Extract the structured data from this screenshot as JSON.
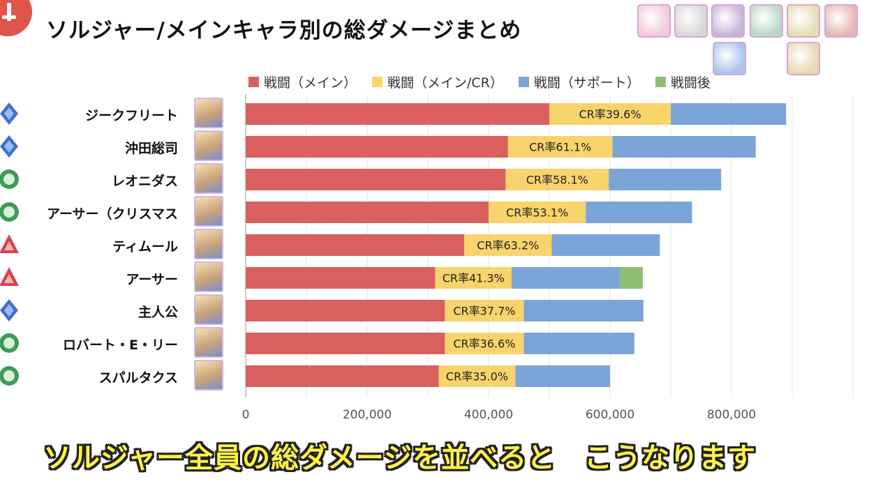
{
  "page": {
    "title": "ソルジャー/メインキャラ別の総ダメージまとめ",
    "caption": "ソルジャー全員の総ダメージを並べると　こうなります"
  },
  "colors": {
    "main": "#d9605e",
    "main_cr": "#f9d36b",
    "support": "#7ba5d9",
    "after": "#8fbf76",
    "grid": "#e6e6e6",
    "axis": "#555555"
  },
  "item_icons": [
    "character-portrait-icon",
    "sword-icon",
    "claw-icon",
    "armor-icon",
    "rope-icon",
    "scroll-icon",
    "orb-icon",
    "wings-icon",
    "spellbook-icon"
  ],
  "chart_data": {
    "type": "bar",
    "orientation": "horizontal",
    "stacked": true,
    "categories": [
      "ジークフリート",
      "沖田総司",
      "レオニダス",
      "アーサー（クリスマス",
      "ティムール",
      "アーサー",
      "主人公",
      "ロバート・E・リー",
      "スパルタクス"
    ],
    "class_icons": [
      "blue-diamond-icon",
      "blue-diamond-icon",
      "green-circle-icon",
      "green-circle-icon",
      "red-triangle-icon",
      "red-triangle-icon",
      "blue-diamond-icon",
      "green-circle-icon",
      "green-circle-icon"
    ],
    "series": [
      {
        "name": "戦闘（メイン）",
        "color": "#d9605e",
        "values": [
          500000,
          432000,
          428000,
          400000,
          360000,
          312000,
          328000,
          328000,
          318000
        ]
      },
      {
        "name": "戦闘（メイン/CR）",
        "color": "#f9d36b",
        "values": [
          200000,
          172000,
          170000,
          160000,
          144000,
          126000,
          130000,
          130000,
          126000
        ]
      },
      {
        "name": "戦闘（サポート）",
        "color": "#7ba5d9",
        "values": [
          190000,
          236000,
          185000,
          175000,
          178000,
          178000,
          197000,
          182000,
          156000
        ]
      },
      {
        "name": "戦闘後",
        "color": "#8fbf76",
        "values": [
          0,
          0,
          0,
          0,
          0,
          38000,
          0,
          0,
          0
        ]
      }
    ],
    "data_labels": [
      "CR率39.6%",
      "CR率61.1%",
      "CR率58.1%",
      "CR率53.1%",
      "CR率63.2%",
      "CR率41.3%",
      "CR率37.7%",
      "CR率36.6%",
      "CR率35.0%"
    ],
    "xlim": [
      0,
      1000000
    ],
    "xticks": [
      "0",
      "200,000",
      "400,000",
      "600,000",
      "800,000"
    ],
    "xtick_values": [
      0,
      200000,
      400000,
      600000,
      800000
    ],
    "grid": true,
    "legend_position": "top"
  }
}
